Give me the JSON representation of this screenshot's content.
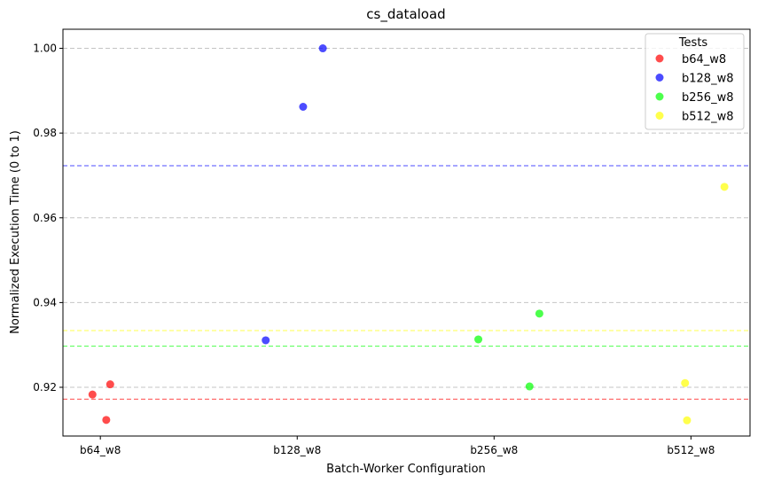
{
  "chart_data": {
    "type": "scatter",
    "title": "cs_dataload",
    "xlabel": "Batch-Worker Configuration",
    "ylabel": "Normalized Execution Time (0 to 1)",
    "categories": [
      "b64_w8",
      "b128_w8",
      "b256_w8",
      "b512_w8"
    ],
    "ylim": [
      0.9085,
      1.0045
    ],
    "yticks": [
      "0.92",
      "0.94",
      "0.96",
      "0.98",
      "1.00"
    ],
    "ytick_values": [
      0.92,
      0.94,
      0.96,
      0.98,
      1.0
    ],
    "grid": "y-dashed",
    "legend": {
      "title": "Tests",
      "placement": "top-right"
    },
    "series": [
      {
        "name": "b64_w8",
        "color": "#ff0000",
        "points": [
          [
            -0.04,
            0.9183
          ],
          [
            0.03,
            0.9123
          ],
          [
            0.05,
            0.9207
          ]
        ],
        "mean": 0.9172
      },
      {
        "name": "b128_w8",
        "color": "#0000ff",
        "points": [
          [
            0.84,
            0.9311
          ],
          [
            1.03,
            0.9862
          ],
          [
            1.13,
            1.0
          ]
        ],
        "mean": 0.9723
      },
      {
        "name": "b256_w8",
        "color": "#00ff00",
        "points": [
          [
            1.92,
            0.9313
          ],
          [
            2.18,
            0.9202
          ],
          [
            2.23,
            0.9374
          ]
        ],
        "mean": 0.9297
      },
      {
        "name": "b512_w8",
        "color": "#ffff00",
        "points": [
          [
            2.97,
            0.921
          ],
          [
            2.98,
            0.9122
          ],
          [
            3.17,
            0.9673
          ]
        ],
        "mean": 0.9334
      }
    ]
  }
}
